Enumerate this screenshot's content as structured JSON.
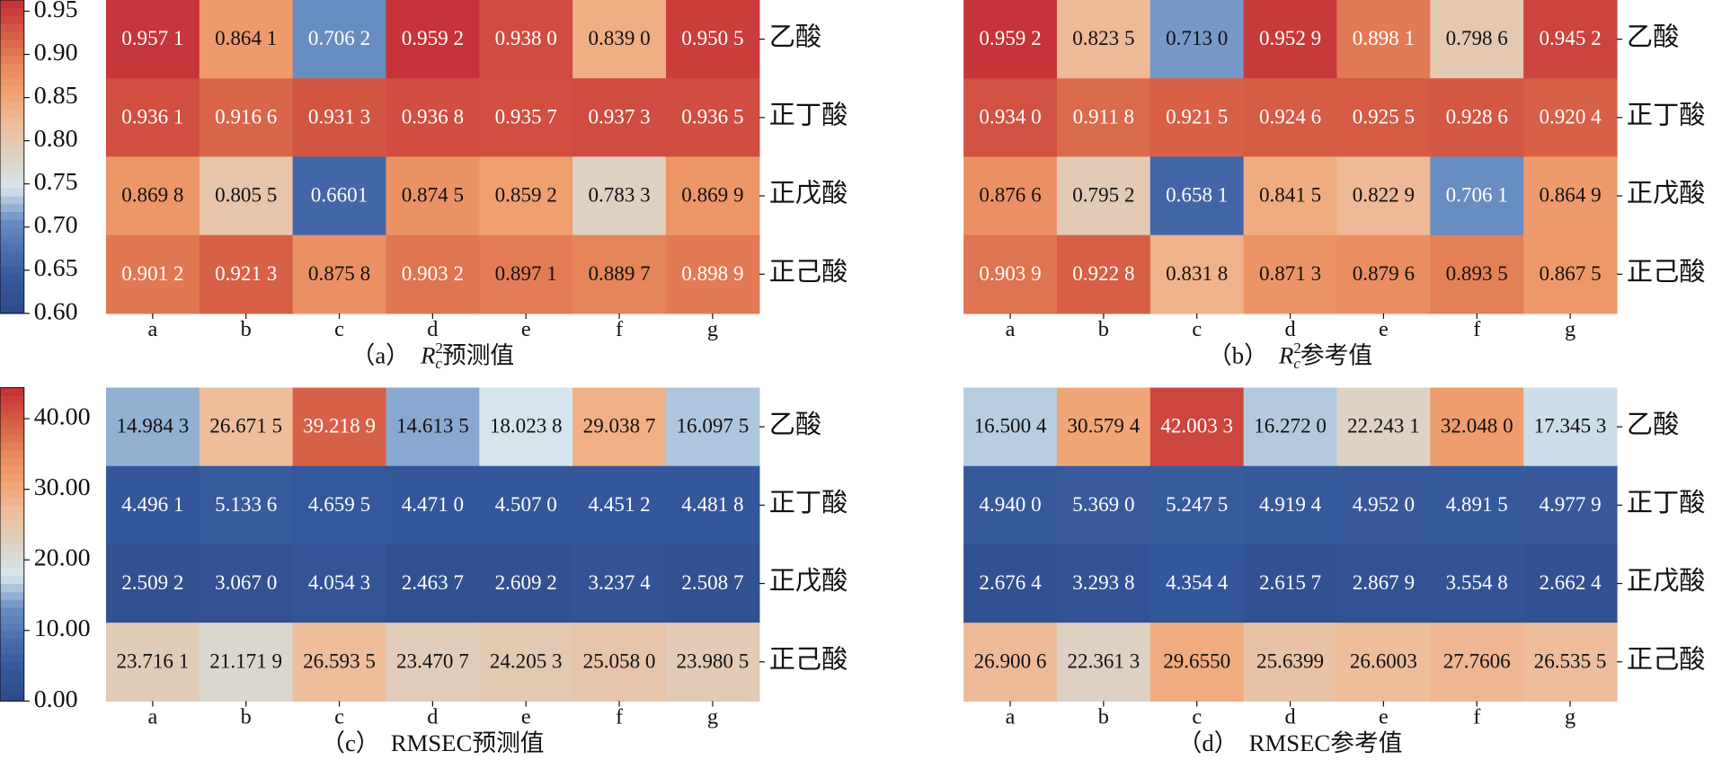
{
  "chart_data": [
    {
      "type": "heatmap",
      "caption_label": "（a）",
      "caption_symbol": "R",
      "caption_superscript": "2",
      "caption_subscript": "c",
      "caption_text": "预测值",
      "categories": [
        "a",
        "b",
        "c",
        "d",
        "e",
        "f",
        "g"
      ],
      "rows": [
        "乙酸",
        "正丁酸",
        "正戊酸",
        "正己酸"
      ],
      "values": [
        [
          0.9571,
          0.8641,
          0.7062,
          0.9592,
          0.938,
          0.839,
          0.9505
        ],
        [
          0.9361,
          0.9166,
          0.9313,
          0.9368,
          0.9357,
          0.9373,
          0.9365
        ],
        [
          0.8698,
          0.8055,
          0.6601,
          0.8745,
          0.8592,
          0.7833,
          0.8699
        ],
        [
          0.9012,
          0.9213,
          0.8758,
          0.9032,
          0.8971,
          0.8897,
          0.8989
        ]
      ],
      "value_labels": [
        [
          "0.957 1",
          "0.864 1",
          "0.706 2",
          "0.959 2",
          "0.938 0",
          "0.839 0",
          "0.950 5"
        ],
        [
          "0.936 1",
          "0.916 6",
          "0.931 3",
          "0.936 8",
          "0.935 7",
          "0.937 3",
          "0.936 5"
        ],
        [
          "0.869 8",
          "0.805 5",
          "0.6601",
          "0.874 5",
          "0.859 2",
          "0.783 3",
          "0.869 9"
        ],
        [
          "0.901 2",
          "0.921 3",
          "0.875 8",
          "0.903 2",
          "0.897 1",
          "0.889 7",
          "0.898 9"
        ]
      ],
      "colorbar": true,
      "clim": [
        0.6,
        0.963
      ],
      "cticks": [
        {
          "value": 0.6,
          "label": "0.60"
        },
        0.65,
        {
          "value": 0.7,
          "label": "0.70"
        },
        0.75,
        {
          "value": 0.8,
          "label": "0.80"
        },
        0.85,
        {
          "value": 0.9,
          "label": "0.90"
        },
        0.95
      ],
      "colormap": [
        "#2c4a86",
        "#34569a",
        "#4a6fae",
        "#6a8fc2",
        "#d6e6ee",
        "#ddd2c4",
        "#edbd9c",
        "#f2a373",
        "#e6845a",
        "#d45a44",
        "#c42f38"
      ]
    },
    {
      "type": "heatmap",
      "caption_label": "（b）",
      "caption_symbol": "R",
      "caption_superscript": "2",
      "caption_subscript": "c",
      "caption_text": "参考值",
      "categories": [
        "a",
        "b",
        "c",
        "d",
        "e",
        "f",
        "g"
      ],
      "rows": [
        "乙酸",
        "正丁酸",
        "正戊酸",
        "正己酸"
      ],
      "values": [
        [
          0.9592,
          0.8235,
          0.713,
          0.9529,
          0.8981,
          0.7986,
          0.9452
        ],
        [
          0.934,
          0.9118,
          0.9215,
          0.9246,
          0.9255,
          0.9286,
          0.9204
        ],
        [
          0.8766,
          0.7952,
          0.6581,
          0.8415,
          0.8229,
          0.7061,
          0.8649
        ],
        [
          0.9039,
          0.9228,
          0.8318,
          0.8713,
          0.8796,
          0.8935,
          0.8675
        ]
      ],
      "value_labels": [
        [
          "0.959 2",
          "0.823 5",
          "0.713 0",
          "0.952 9",
          "0.898 1",
          "0.798 6",
          "0.945 2"
        ],
        [
          "0.934 0",
          "0.911 8",
          "0.921 5",
          "0.924 6",
          "0.925 5",
          "0.928 6",
          "0.920 4"
        ],
        [
          "0.876 6",
          "0.795 2",
          "0.658 1",
          "0.841 5",
          "0.822 9",
          "0.706 1",
          "0.864 9"
        ],
        [
          "0.903 9",
          "0.922 8",
          "0.831 8",
          "0.871 3",
          "0.879 6",
          "0.893 5",
          "0.867 5"
        ]
      ],
      "colorbar": false,
      "clim": [
        0.6,
        0.963
      ],
      "colormap": [
        "#2c4a86",
        "#34569a",
        "#4a6fae",
        "#6a8fc2",
        "#d6e6ee",
        "#ddd2c4",
        "#edbd9c",
        "#f2a373",
        "#e6845a",
        "#d45a44",
        "#c42f38"
      ]
    },
    {
      "type": "heatmap",
      "caption_label": "（c）",
      "caption_text": "RMSEC预测值",
      "categories": [
        "a",
        "b",
        "c",
        "d",
        "e",
        "f",
        "g"
      ],
      "rows": [
        "乙酸",
        "正丁酸",
        "正戊酸",
        "正己酸"
      ],
      "values": [
        [
          14.9843,
          26.6715,
          39.2189,
          14.6135,
          18.0238,
          29.0387,
          16.0975
        ],
        [
          4.4961,
          5.1336,
          4.6595,
          4.471,
          4.507,
          4.4512,
          4.4818
        ],
        [
          2.5092,
          3.067,
          4.0543,
          2.4637,
          2.6092,
          3.2374,
          2.5087
        ],
        [
          23.7161,
          21.1719,
          26.5935,
          23.4707,
          24.2053,
          25.058,
          23.9805
        ]
      ],
      "value_labels": [
        [
          "14.984 3",
          "26.671 5",
          "39.218 9",
          "14.613 5",
          "18.023 8",
          "29.038 7",
          "16.097 5"
        ],
        [
          "4.496 1",
          "5.133 6",
          "4.659 5",
          "4.471 0",
          "4.507 0",
          "4.451 2",
          "4.481 8"
        ],
        [
          "2.509 2",
          "3.067 0",
          "4.054 3",
          "2.463 7",
          "2.609 2",
          "3.237 4",
          "2.508 7"
        ],
        [
          "23.716 1",
          "21.171 9",
          "26.593 5",
          "23.470 7",
          "24.205 3",
          "25.058 0",
          "23.980 5"
        ]
      ],
      "colorbar": true,
      "clim": [
        0,
        44.4
      ],
      "cticks": [
        {
          "value": 0,
          "label": "0.00"
        },
        {
          "value": 10,
          "label": "10.00"
        },
        {
          "value": 20,
          "label": "20.00"
        },
        {
          "value": 30,
          "label": "30.00"
        },
        {
          "value": 40,
          "label": "40.00"
        }
      ],
      "colormap": [
        "#2c4a86",
        "#34569a",
        "#4a6fae",
        "#6a8fc2",
        "#d6e6ee",
        "#ddd2c4",
        "#edbd9c",
        "#f2a373",
        "#e6845a",
        "#d45a44",
        "#c42f38"
      ]
    },
    {
      "type": "heatmap",
      "caption_label": "（d）",
      "caption_text": "RMSEC参考值",
      "categories": [
        "a",
        "b",
        "c",
        "d",
        "e",
        "f",
        "g"
      ],
      "rows": [
        "乙酸",
        "正丁酸",
        "正戊酸",
        "正己酸"
      ],
      "values": [
        [
          16.5004,
          30.5794,
          42.0033,
          16.272,
          22.2431,
          32.048,
          17.3453
        ],
        [
          4.94,
          5.369,
          5.2475,
          4.9194,
          4.952,
          4.8915,
          4.9779
        ],
        [
          2.6764,
          3.2938,
          4.3544,
          2.6157,
          2.8679,
          3.5548,
          2.6624
        ],
        [
          26.9006,
          22.3613,
          29.655,
          25.6399,
          26.6003,
          27.7606,
          26.5355
        ]
      ],
      "value_labels": [
        [
          "16.500 4",
          "30.579 4",
          "42.003 3",
          "16.272 0",
          "22.243 1",
          "32.048 0",
          "17.345 3"
        ],
        [
          "4.940 0",
          "5.369 0",
          "5.247 5",
          "4.919 4",
          "4.952 0",
          "4.891 5",
          "4.977 9"
        ],
        [
          "2.676 4",
          "3.293 8",
          "4.354 4",
          "2.615 7",
          "2.867 9",
          "3.554 8",
          "2.662 4"
        ],
        [
          "26.900 6",
          "22.361 3",
          "29.6550",
          "25.6399",
          "26.6003",
          "27.7606",
          "26.535 5"
        ]
      ],
      "colorbar": false,
      "clim": [
        0,
        44.4
      ],
      "colormap": [
        "#2c4a86",
        "#34569a",
        "#4a6fae",
        "#6a8fc2",
        "#d6e6ee",
        "#ddd2c4",
        "#edbd9c",
        "#f2a373",
        "#e6845a",
        "#d45a44",
        "#c42f38"
      ]
    }
  ]
}
